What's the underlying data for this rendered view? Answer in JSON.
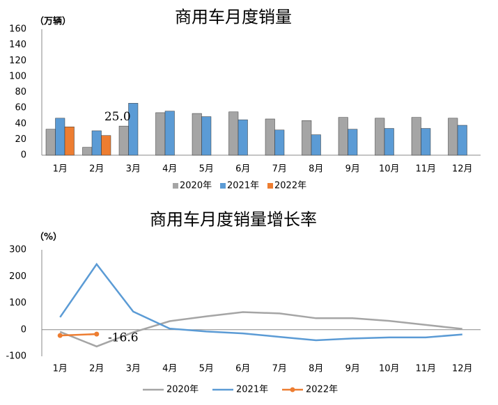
{
  "chart_data": [
    {
      "type": "bar",
      "title": "商用车月度销量",
      "y_label": "（万辆）",
      "categories": [
        "1月",
        "2月",
        "3月",
        "4月",
        "5月",
        "6月",
        "7月",
        "8月",
        "9月",
        "10月",
        "11月",
        "12月"
      ],
      "series": [
        {
          "name": "2020年",
          "color": "#a5a5a5",
          "values": [
            33,
            10,
            37,
            54,
            53,
            55,
            46,
            44,
            48,
            47,
            48,
            47
          ]
        },
        {
          "name": "2021年",
          "color": "#5b9bd5",
          "values": [
            47,
            31,
            66,
            56,
            49,
            45,
            32,
            26,
            33,
            34,
            34,
            38
          ]
        },
        {
          "name": "2022年",
          "color": "#ed7d31",
          "values": [
            36,
            25,
            null,
            null,
            null,
            null,
            null,
            null,
            null,
            null,
            null,
            null
          ],
          "value_labels": [
            null,
            "25.0",
            null,
            null,
            null,
            null,
            null,
            null,
            null,
            null,
            null,
            null
          ]
        }
      ],
      "ylim": [
        0,
        160
      ],
      "yticks": [
        0,
        20,
        40,
        60,
        80,
        100,
        120,
        140,
        160
      ],
      "legend": "bottom"
    },
    {
      "type": "line",
      "title": "商用车月度销量增长率",
      "y_label": "（%）",
      "categories": [
        "1月",
        "2月",
        "3月",
        "4月",
        "5月",
        "6月",
        "7月",
        "8月",
        "9月",
        "10月",
        "11月",
        "12月"
      ],
      "series": [
        {
          "name": "2020年",
          "color": "#a5a5a5",
          "values": [
            -8,
            -63,
            -10,
            32,
            50,
            66,
            61,
            43,
            43,
            33,
            18,
            3
          ]
        },
        {
          "name": "2021年",
          "color": "#5b9bd5",
          "values": [
            47,
            246,
            68,
            4,
            -7,
            -14,
            -27,
            -40,
            -33,
            -29,
            -29,
            -18
          ]
        },
        {
          "name": "2022年",
          "color": "#ed7d31",
          "values": [
            -22,
            -16.6,
            null,
            null,
            null,
            null,
            null,
            null,
            null,
            null,
            null,
            null
          ],
          "value_labels": [
            null,
            "-16.6",
            null,
            null,
            null,
            null,
            null,
            null,
            null,
            null,
            null,
            null
          ],
          "markers": true
        }
      ],
      "ylim": [
        -100,
        300
      ],
      "yticks": [
        -100,
        0,
        100,
        200,
        300
      ],
      "legend": "bottom"
    }
  ]
}
